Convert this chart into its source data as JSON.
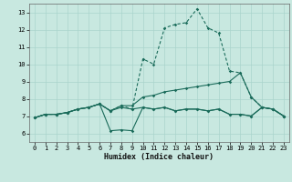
{
  "xlabel": "Humidex (Indice chaleur)",
  "xlim": [
    -0.5,
    23.5
  ],
  "ylim": [
    5.5,
    13.5
  ],
  "xticks": [
    0,
    1,
    2,
    3,
    4,
    5,
    6,
    7,
    8,
    9,
    10,
    11,
    12,
    13,
    14,
    15,
    16,
    17,
    18,
    19,
    20,
    21,
    22,
    23
  ],
  "yticks": [
    6,
    7,
    8,
    9,
    10,
    11,
    12,
    13
  ],
  "background_color": "#c8e8e0",
  "grid_color": "#aad4cc",
  "line_color": "#1a6b5a",
  "line1_x": [
    0,
    1,
    2,
    3,
    4,
    5,
    6,
    7,
    8,
    9,
    10,
    11,
    12,
    13,
    14,
    15,
    16,
    17,
    18,
    19,
    20,
    21,
    22,
    23
  ],
  "line1_y": [
    6.9,
    7.1,
    7.1,
    7.2,
    7.4,
    7.5,
    7.7,
    6.15,
    6.2,
    6.15,
    7.5,
    7.4,
    7.5,
    7.3,
    7.4,
    7.4,
    7.3,
    7.4,
    7.1,
    7.1,
    7.0,
    7.5,
    7.4,
    7.0
  ],
  "line2_x": [
    0,
    1,
    2,
    3,
    4,
    5,
    6,
    7,
    8,
    9,
    10,
    11,
    12,
    13,
    14,
    15,
    16,
    17,
    18,
    19,
    20,
    21,
    22,
    23
  ],
  "line2_y": [
    6.9,
    7.1,
    7.1,
    7.2,
    7.4,
    7.5,
    7.7,
    7.3,
    7.6,
    7.6,
    8.1,
    8.2,
    8.4,
    8.5,
    8.6,
    8.7,
    8.8,
    8.9,
    9.0,
    9.5,
    8.1,
    7.5,
    7.4,
    7.0
  ],
  "line3_x": [
    0,
    1,
    2,
    3,
    4,
    5,
    6,
    7,
    8,
    9,
    10,
    11,
    12,
    13,
    14,
    15,
    16,
    17,
    18,
    19,
    20,
    21,
    22,
    23
  ],
  "line3_y": [
    6.9,
    7.1,
    7.1,
    7.2,
    7.4,
    7.5,
    7.7,
    7.3,
    7.6,
    7.4,
    10.3,
    10.0,
    12.1,
    12.3,
    12.4,
    13.2,
    12.1,
    11.8,
    9.6,
    9.5,
    8.1,
    7.5,
    7.4,
    7.0
  ],
  "line4_x": [
    0,
    1,
    2,
    3,
    4,
    5,
    6,
    7,
    8,
    9,
    10,
    11,
    12,
    13,
    14,
    15,
    16,
    17,
    18,
    19,
    20,
    21,
    22,
    23
  ],
  "line4_y": [
    6.9,
    7.1,
    7.1,
    7.2,
    7.4,
    7.5,
    7.7,
    7.3,
    7.5,
    7.4,
    7.5,
    7.4,
    7.5,
    7.3,
    7.4,
    7.4,
    7.3,
    7.4,
    7.1,
    7.1,
    7.0,
    7.5,
    7.4,
    7.0
  ]
}
